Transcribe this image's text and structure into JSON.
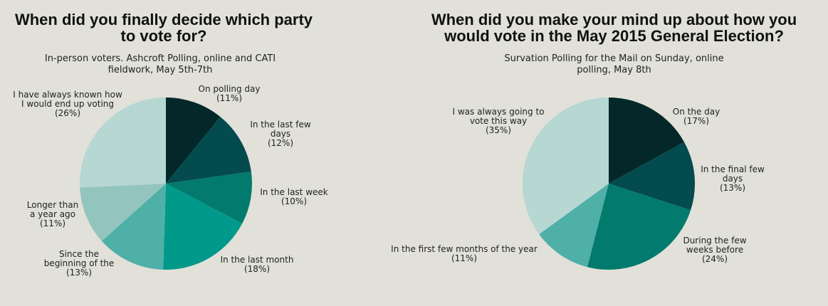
{
  "chart_data": [
    {
      "type": "pie",
      "title": "When did you finally decide which party to vote for?",
      "subtitle": "In-person voters. Ashcroft Polling, online and CATI fieldwork, May 5th-7th",
      "slices": [
        {
          "label": "On polling day",
          "percent_label": "(11%)",
          "value": 11,
          "color": "#04282a"
        },
        {
          "label": "In the last few days",
          "percent_label": "(12%)",
          "value": 12,
          "color": "#034b4e"
        },
        {
          "label": "In the last week",
          "percent_label": "(10%)",
          "value": 10,
          "color": "#027a6e"
        },
        {
          "label": "In the last month",
          "percent_label": "(18%)",
          "value": 18,
          "color": "#00998a"
        },
        {
          "label": "Since the beginning of the year",
          "percent_label": "(13%)",
          "value": 13,
          "color": "#4fb0a8"
        },
        {
          "label": "Longer than a year ago",
          "percent_label": "(11%)",
          "value": 11,
          "color": "#93c5be"
        },
        {
          "label": "I have always known how I would end up voting",
          "percent_label": "(26%)",
          "value": 26,
          "color": "#b6d7d2"
        }
      ]
    },
    {
      "type": "pie",
      "title": "When did you make your mind up about how you would vote in the May 2015 General Election?",
      "subtitle": "Survation Polling for the Mail on Sunday, online polling, May 8th",
      "slices": [
        {
          "label": "On the day",
          "percent_label": "(17%)",
          "value": 17,
          "color": "#04282a"
        },
        {
          "label": "In the final few days",
          "percent_label": "(13%)",
          "value": 13,
          "color": "#034b4e"
        },
        {
          "label": "During the few weeks before",
          "percent_label": "(24%)",
          "value": 24,
          "color": "#027a6e"
        },
        {
          "label": "In the first few months of the year",
          "percent_label": "(11%)",
          "value": 11,
          "color": "#4fb0a8"
        },
        {
          "label": "I was always going to vote this way",
          "percent_label": "(35%)",
          "value": 35,
          "color": "#b6d7d2"
        }
      ]
    }
  ]
}
